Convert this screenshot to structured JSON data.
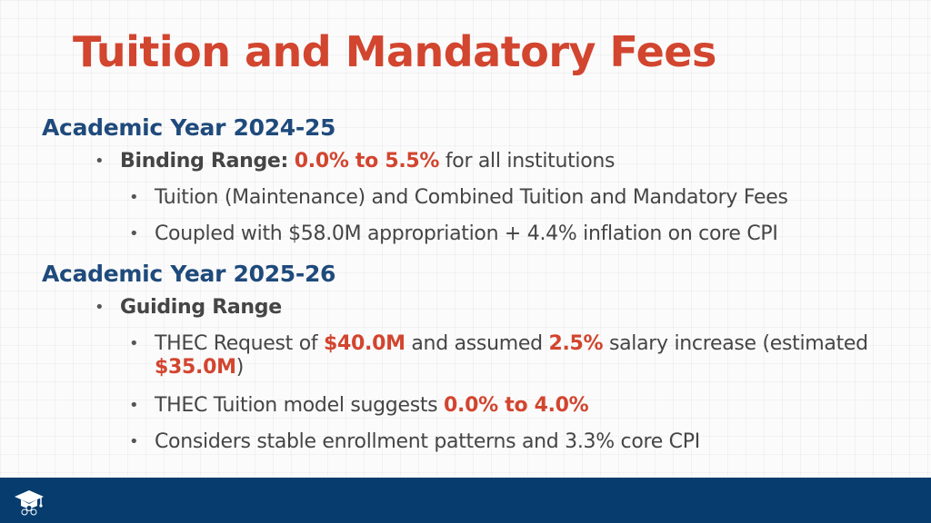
{
  "title": "Tuition and Mandatory Fees",
  "year1": {
    "heading": "Academic Year 2024-25",
    "bullet1": {
      "label": "Binding Range:",
      "value": "0.0% to 5.5%",
      "rest": " for all institutions"
    },
    "sub1": "Tuition (Maintenance) and Combined Tuition and Mandatory Fees",
    "sub2": "Coupled with $58.0M appropriation + 4.4% inflation on core CPI"
  },
  "year2": {
    "heading": "Academic Year 2025-26",
    "bullet1": {
      "label": "Guiding Range"
    },
    "sub1": {
      "t1": "THEC Request of ",
      "v1": "$40.0M",
      "t2": " and assumed ",
      "v2": "2.5%",
      "t3": " salary increase (estimated ",
      "v3": "$35.0M",
      "t4": ")"
    },
    "sub2": {
      "t1": "THEC Tuition model suggests ",
      "v1": "0.0% to 4.0%"
    },
    "sub3": "Considers stable enrollment patterns and 3.3% core CPI"
  },
  "footer": {
    "logo_icon": "graduation-cap-stars-icon"
  },
  "colors": {
    "title": "#d2452f",
    "heading": "#1f4a7c",
    "footer": "#063c6e"
  }
}
